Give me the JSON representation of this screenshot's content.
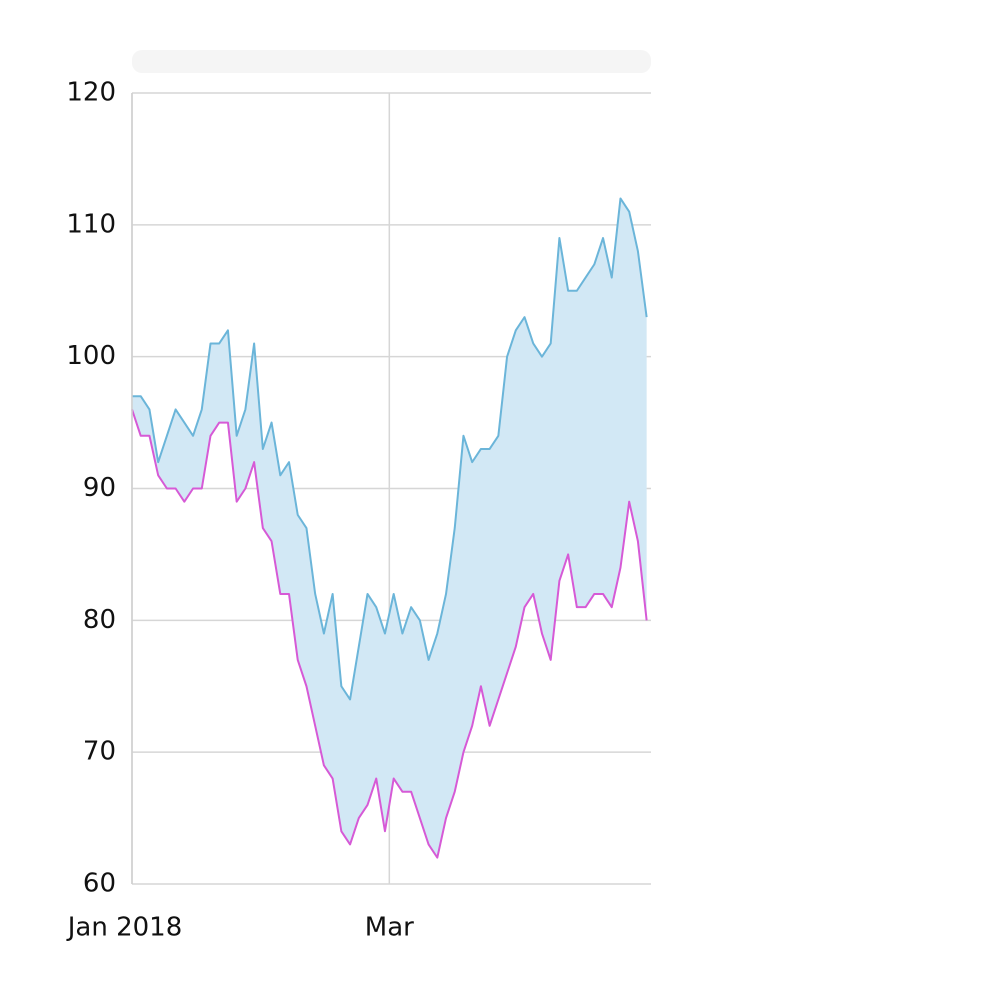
{
  "chart_data": {
    "type": "range_area",
    "x": [
      0,
      2,
      4,
      6,
      8,
      10,
      12,
      14,
      16,
      18,
      20,
      22,
      24,
      26,
      28,
      30,
      32,
      34,
      36,
      38,
      40,
      42,
      44,
      46,
      48,
      50,
      52,
      54,
      56,
      58,
      60,
      62,
      64,
      66,
      68,
      70,
      72,
      74,
      76,
      78,
      80,
      82,
      84,
      86,
      88,
      90,
      92,
      94,
      96,
      98,
      100,
      102,
      104,
      106,
      108,
      110,
      112,
      114,
      116,
      118
    ],
    "series": [
      {
        "color": "#6bb5d9",
        "values": [
          97,
          97,
          96,
          92,
          94,
          96,
          95,
          94,
          96,
          101,
          101,
          102,
          94,
          96,
          101,
          93,
          95,
          91,
          92,
          88,
          87,
          82,
          79,
          82,
          75,
          74,
          78,
          82,
          81,
          79,
          82,
          79,
          81,
          80,
          77,
          79,
          82,
          87,
          94,
          92,
          93,
          93,
          94,
          100,
          102,
          103,
          101,
          100,
          101,
          109,
          105,
          105,
          106,
          107,
          109,
          106,
          112,
          111,
          108,
          103
        ]
      },
      {
        "color": "#d65ad6",
        "values": [
          96,
          94,
          94,
          91,
          90,
          90,
          89,
          90,
          90,
          94,
          95,
          95,
          89,
          90,
          92,
          87,
          86,
          82,
          82,
          77,
          75,
          72,
          69,
          68,
          64,
          63,
          65,
          66,
          68,
          64,
          68,
          67,
          67,
          65,
          63,
          62,
          65,
          67,
          70,
          72,
          75,
          72,
          74,
          76,
          78,
          81,
          82,
          79,
          77,
          83,
          85,
          81,
          81,
          82,
          82,
          81,
          84,
          89,
          86,
          80
        ]
      }
    ],
    "fill_color": "#d2e8f5",
    "xlim": [
      0,
      119
    ],
    "xticks": [
      {
        "value": 0,
        "label": "Jan 2018"
      },
      {
        "value": 59,
        "label": "Mar"
      }
    ],
    "ylim": [
      60,
      120
    ],
    "yticks": [
      60,
      70,
      80,
      90,
      100,
      110,
      120
    ],
    "grid": true
  }
}
